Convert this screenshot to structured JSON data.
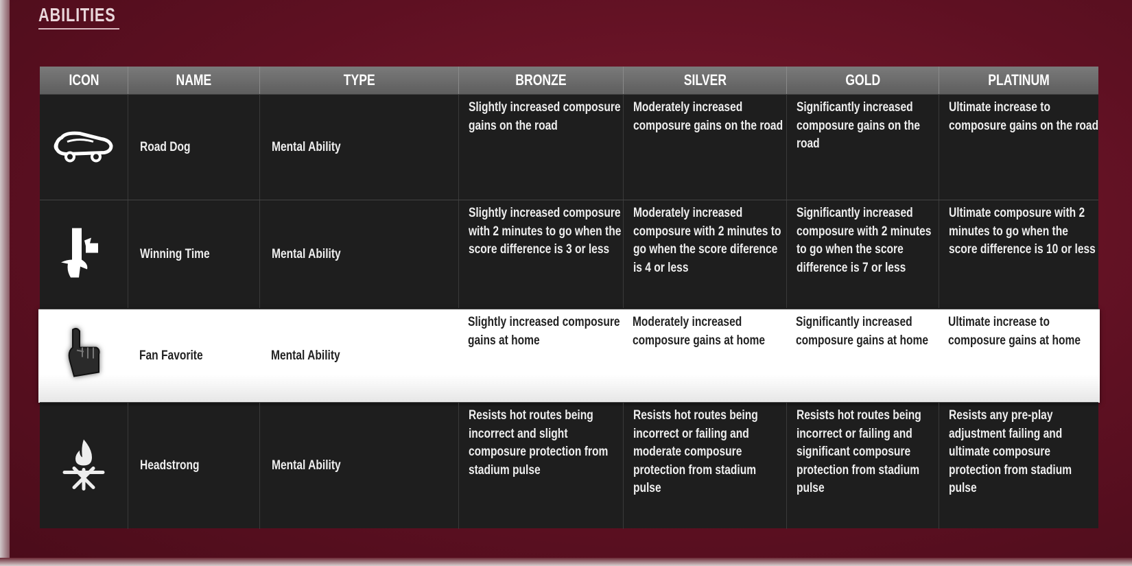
{
  "title": "ABILITIES",
  "columns": [
    "ICON",
    "NAME",
    "TYPE",
    "BRONZE",
    "SILVER",
    "GOLD",
    "PLATINUM"
  ],
  "rows": [
    {
      "icon": "road-dog-bus-icon",
      "name": "Road Dog",
      "type": "Mental Ability",
      "selected": false,
      "bronze": "Slightly increased composure gains on the road",
      "silver": "Moderately increased composure gains on the road",
      "gold": "Significantly increased composure gains on the road",
      "platinum": "Ultimate increase to composure gains on the road"
    },
    {
      "icon": "winning-time-hand-icon",
      "name": "Winning Time",
      "type": "Mental Ability",
      "selected": false,
      "bronze": "Slightly increased composure with 2 minutes to go when the score difference is 3 or less",
      "silver": "Moderately increased composure with 2 minutes to go when the score diference is 4 or less",
      "gold": "Significantly increased composure with 2 minutes to go when the score difference is 7 or less",
      "platinum": "Ultimate composure with 2 minutes to go when the score difference is 10 or less"
    },
    {
      "icon": "foam-finger-icon",
      "name": "Fan Favorite",
      "type": "Mental Ability",
      "selected": true,
      "bronze": "Slightly increased composure gains at home",
      "silver": "Moderately increased composure gains at home",
      "gold": "Significantly increased composure gains at home",
      "platinum": "Ultimate increase to composure gains at home"
    },
    {
      "icon": "fire-snowflake-icon",
      "name": "Headstrong",
      "type": "Mental Ability",
      "selected": false,
      "bronze": "Resists hot routes being incorrect and slight composure protection from stadium pulse",
      "silver": "Resists hot routes being incorrect or failing and moderate composure protection from stadium pulse",
      "gold": "Resists hot routes being incorrect or failing and significant composure protection from stadium pulse",
      "platinum": "Resists any pre-play adjustment failing and ultimate composure protection from stadium pulse"
    }
  ],
  "colors": {
    "background": "#5e1022",
    "table": "#1e1e1e",
    "header": "#6a6a6a",
    "selected_row": "#ffffff"
  }
}
